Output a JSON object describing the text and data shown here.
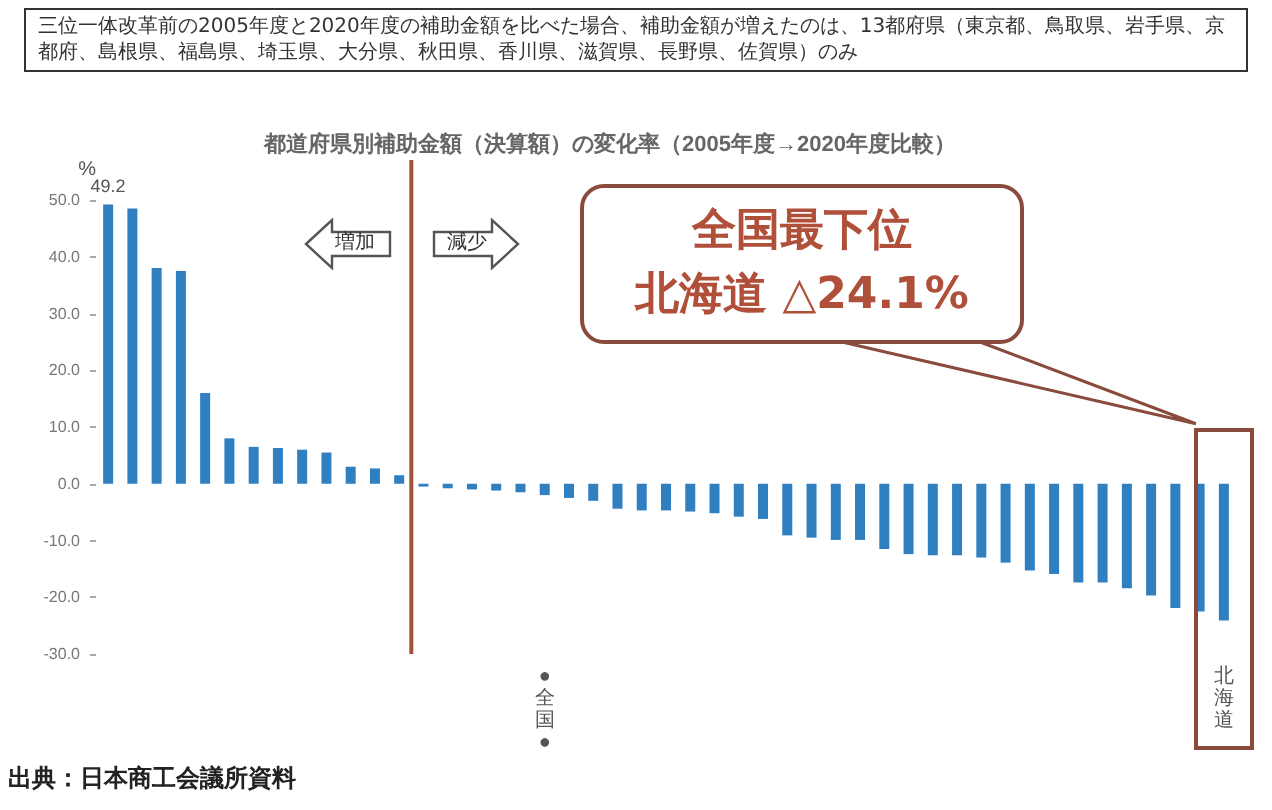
{
  "chart_data": {
    "type": "bar",
    "title": "都道府県別補助金額（決算額）の変化率（2005年度→2020年度比較）",
    "subtitle": "三位一体改革前の2005年度と2020年度の補助金額を比べた場合、補助金額が増えたのは、13都府県（東京都、鳥取県、岩手県、京都府、島根県、福島県、埼玉県、大分県、秋田県、香川県、滋賀県、長野県、佐賀県）のみ",
    "ylabel": "%",
    "categories": [
      null,
      null,
      null,
      null,
      null,
      null,
      null,
      null,
      null,
      null,
      null,
      null,
      null,
      null,
      null,
      null,
      null,
      null,
      "●全国●",
      null,
      null,
      null,
      null,
      null,
      null,
      null,
      null,
      null,
      null,
      null,
      null,
      null,
      null,
      null,
      null,
      null,
      null,
      null,
      null,
      null,
      null,
      null,
      null,
      null,
      null,
      null,
      "北海道"
    ],
    "values": [
      49.2,
      48.5,
      38,
      37.5,
      16,
      8,
      6.5,
      6.3,
      6,
      5.5,
      3,
      2.7,
      1.5,
      -0.5,
      -0.8,
      -1,
      -1.2,
      -1.5,
      -2,
      -2.5,
      -3,
      -4.4,
      -4.7,
      -4.7,
      -4.9,
      -5.2,
      -5.8,
      -6.2,
      -9.1,
      -9.5,
      -9.9,
      -9.9,
      -11.5,
      -12.4,
      -12.6,
      -12.6,
      -13,
      -13.9,
      -15.3,
      -15.9,
      -17.4,
      -17.4,
      -18.4,
      -19.7,
      -21.9,
      -22.5,
      -24.1
    ],
    "value_labels": [
      "49.2",
      null,
      null,
      null,
      null,
      null,
      null,
      null,
      null,
      null,
      null,
      null,
      null,
      null,
      null,
      null,
      null,
      null,
      null,
      null,
      null,
      null,
      null,
      null,
      null,
      null,
      null,
      null,
      null,
      null,
      null,
      null,
      null,
      null,
      null,
      null,
      null,
      null,
      null,
      null,
      null,
      null,
      null,
      null,
      null,
      null,
      null
    ],
    "color": "#2f7fc1",
    "ylim": [
      -30,
      50
    ],
    "yticks": [
      {
        "value": -30,
        "label": "-30.0"
      },
      {
        "value": -20,
        "label": "-20.0"
      },
      {
        "value": -10,
        "label": "-10.0"
      },
      {
        "value": 0,
        "label": "0.0"
      },
      {
        "value": 10,
        "label": "10.0"
      },
      {
        "value": 20,
        "label": "20.0"
      },
      {
        "value": 30,
        "label": "30.0"
      },
      {
        "value": 40,
        "label": "40.0"
      },
      {
        "value": 50,
        "label": "50.0"
      }
    ],
    "grid": false,
    "annotations": [
      "増加",
      "減少",
      "全国最下位",
      "北海道 △24.1%",
      "出典：日本商工会議所資料"
    ]
  }
}
